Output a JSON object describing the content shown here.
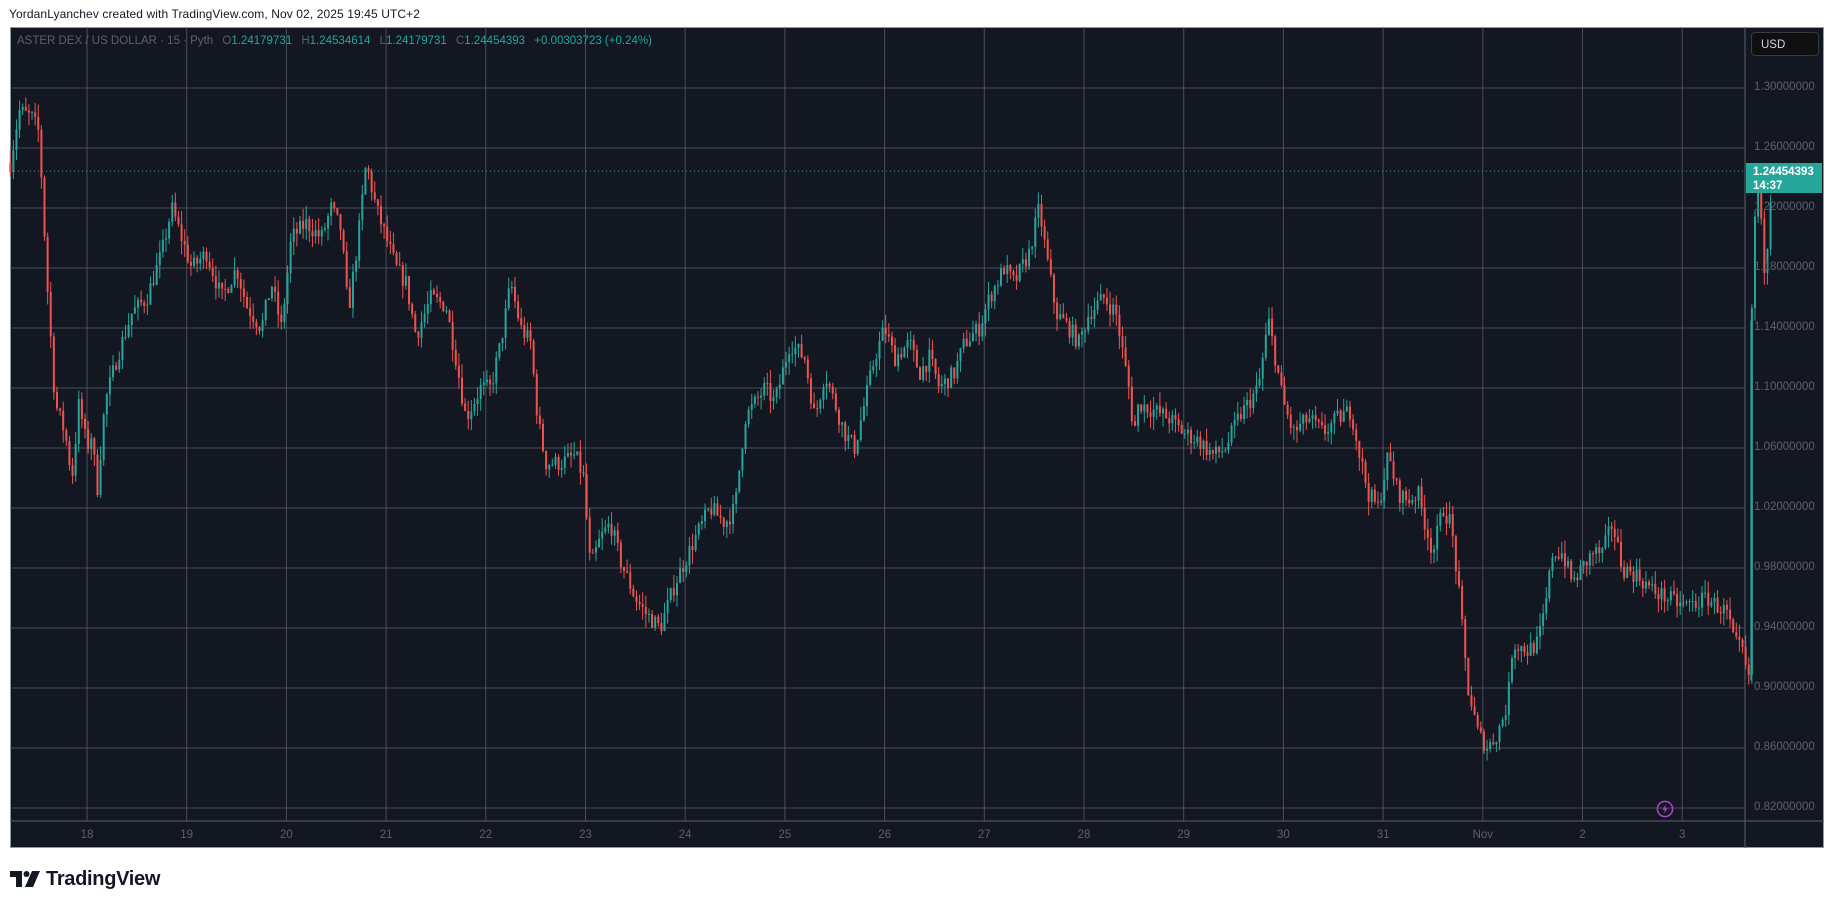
{
  "credit": "YordanLyanchev created with TradingView.com, Nov 02, 2025 19:45 UTC+2",
  "legend": {
    "symbol_prefix": "ASTER DEX / US DOLLAR · 15 · Pyth",
    "open_label": "O",
    "open": "1.24179731",
    "high_label": "H",
    "high": "1.24534614",
    "low_label": "L",
    "low": "1.24179731",
    "close_label": "C",
    "close": "1.24454393",
    "change": "+0.00303723 (+0.24%)"
  },
  "currency_button": "USD",
  "last_price": {
    "value": "1.24454393",
    "countdown": "14:37"
  },
  "brand": {
    "name": "TradingView",
    "logo_icon": "tradingview-logo-icon"
  },
  "colors": {
    "background": "#131722",
    "grid": "#5d606b",
    "up": "#26a69a",
    "down": "#ef5350",
    "axis_text": "#5d606b",
    "last_price_tag": "#26a69a",
    "alert_icon": "#b43fd6"
  },
  "price_axis": {
    "labels": [
      "1.30000000",
      "1.26000000",
      "1.22000000",
      "1.18000000",
      "1.14000000",
      "1.10000000",
      "1.06000000",
      "1.02000000",
      "0.98000000",
      "0.94000000",
      "0.90000000",
      "0.86000000",
      "0.82000000"
    ]
  },
  "time_axis": {
    "labels": [
      "18",
      "19",
      "20",
      "21",
      "22",
      "23",
      "24",
      "25",
      "26",
      "27",
      "28",
      "29",
      "30",
      "31",
      "Nov",
      "2",
      "3"
    ]
  },
  "chart_data": {
    "type": "candlestick",
    "title": "ASTER DEX / US DOLLAR · 15 · Pyth",
    "interval": "15m",
    "xlabel": "",
    "ylabel": "USD",
    "ylim": [
      0.815,
      1.325
    ],
    "grid": true,
    "x_ticks": [
      "18",
      "19",
      "20",
      "21",
      "22",
      "23",
      "24",
      "25",
      "26",
      "27",
      "28",
      "29",
      "30",
      "31",
      "Nov",
      "2",
      "3"
    ],
    "y_ticks": [
      1.3,
      1.26,
      1.22,
      1.18,
      1.14,
      1.1,
      1.06,
      1.02,
      0.98,
      0.94,
      0.9,
      0.86,
      0.82
    ],
    "last_price": 1.24454393,
    "path_note": "approximate closing-price path; x = days since Oct 17 00:00",
    "path": [
      [
        0.23,
        1.25
      ],
      [
        0.32,
        1.285
      ],
      [
        0.45,
        1.28
      ],
      [
        0.52,
        1.27
      ],
      [
        0.6,
        1.17
      ],
      [
        0.68,
        1.09
      ],
      [
        0.78,
        1.07
      ],
      [
        0.85,
        1.04
      ],
      [
        0.92,
        1.09
      ],
      [
        1.0,
        1.06
      ],
      [
        1.05,
        1.07
      ],
      [
        1.1,
        1.03
      ],
      [
        1.18,
        1.09
      ],
      [
        1.3,
        1.12
      ],
      [
        1.45,
        1.15
      ],
      [
        1.6,
        1.16
      ],
      [
        1.75,
        1.19
      ],
      [
        1.85,
        1.22
      ],
      [
        1.95,
        1.2
      ],
      [
        2.05,
        1.18
      ],
      [
        2.2,
        1.19
      ],
      [
        2.35,
        1.16
      ],
      [
        2.5,
        1.18
      ],
      [
        2.6,
        1.155
      ],
      [
        2.75,
        1.14
      ],
      [
        2.85,
        1.17
      ],
      [
        2.95,
        1.14
      ],
      [
        3.05,
        1.2
      ],
      [
        3.2,
        1.21
      ],
      [
        3.35,
        1.2
      ],
      [
        3.45,
        1.22
      ],
      [
        3.55,
        1.205
      ],
      [
        3.62,
        1.15
      ],
      [
        3.72,
        1.2
      ],
      [
        3.8,
        1.25
      ],
      [
        3.9,
        1.22
      ],
      [
        4.0,
        1.2
      ],
      [
        4.1,
        1.18
      ],
      [
        4.2,
        1.17
      ],
      [
        4.3,
        1.135
      ],
      [
        4.45,
        1.16
      ],
      [
        4.6,
        1.155
      ],
      [
        4.7,
        1.12
      ],
      [
        4.8,
        1.08
      ],
      [
        4.95,
        1.1
      ],
      [
        5.05,
        1.1
      ],
      [
        5.15,
        1.13
      ],
      [
        5.25,
        1.17
      ],
      [
        5.35,
        1.14
      ],
      [
        5.45,
        1.13
      ],
      [
        5.52,
        1.08
      ],
      [
        5.6,
        1.05
      ],
      [
        5.75,
        1.05
      ],
      [
        5.9,
        1.055
      ],
      [
        5.98,
        1.04
      ],
      [
        6.05,
        0.98
      ],
      [
        6.15,
        1.0
      ],
      [
        6.25,
        1.01
      ],
      [
        6.35,
        0.985
      ],
      [
        6.5,
        0.96
      ],
      [
        6.6,
        0.95
      ],
      [
        6.75,
        0.94
      ],
      [
        6.9,
        0.97
      ],
      [
        7.1,
        1.0
      ],
      [
        7.25,
        1.02
      ],
      [
        7.4,
        1.01
      ],
      [
        7.5,
        1.02
      ],
      [
        7.6,
        1.08
      ],
      [
        7.7,
        1.09
      ],
      [
        7.8,
        1.1
      ],
      [
        7.9,
        1.09
      ],
      [
        8.05,
        1.13
      ],
      [
        8.2,
        1.12
      ],
      [
        8.3,
        1.08
      ],
      [
        8.4,
        1.11
      ],
      [
        8.5,
        1.09
      ],
      [
        8.6,
        1.07
      ],
      [
        8.7,
        1.06
      ],
      [
        8.8,
        1.09
      ],
      [
        8.9,
        1.12
      ],
      [
        9.0,
        1.14
      ],
      [
        9.1,
        1.12
      ],
      [
        9.25,
        1.13
      ],
      [
        9.35,
        1.11
      ],
      [
        9.45,
        1.12
      ],
      [
        9.55,
        1.1
      ],
      [
        9.7,
        1.11
      ],
      [
        9.8,
        1.13
      ],
      [
        9.95,
        1.14
      ],
      [
        10.05,
        1.16
      ],
      [
        10.2,
        1.18
      ],
      [
        10.3,
        1.17
      ],
      [
        10.45,
        1.19
      ],
      [
        10.55,
        1.22
      ],
      [
        10.62,
        1.19
      ],
      [
        10.72,
        1.15
      ],
      [
        10.85,
        1.14
      ],
      [
        10.95,
        1.13
      ],
      [
        11.05,
        1.15
      ],
      [
        11.2,
        1.16
      ],
      [
        11.32,
        1.15
      ],
      [
        11.45,
        1.1
      ],
      [
        11.5,
        1.07
      ],
      [
        11.55,
        1.09
      ],
      [
        11.7,
        1.085
      ],
      [
        11.85,
        1.08
      ],
      [
        12.0,
        1.07
      ],
      [
        12.15,
        1.065
      ],
      [
        12.3,
        1.055
      ],
      [
        12.42,
        1.06
      ],
      [
        12.55,
        1.08
      ],
      [
        12.65,
        1.09
      ],
      [
        12.75,
        1.1
      ],
      [
        12.85,
        1.145
      ],
      [
        12.92,
        1.12
      ],
      [
        13.0,
        1.09
      ],
      [
        13.1,
        1.07
      ],
      [
        13.25,
        1.08
      ],
      [
        13.4,
        1.07
      ],
      [
        13.55,
        1.08
      ],
      [
        13.68,
        1.085
      ],
      [
        13.75,
        1.06
      ],
      [
        13.85,
        1.03
      ],
      [
        13.95,
        1.02
      ],
      [
        14.05,
        1.055
      ],
      [
        14.15,
        1.03
      ],
      [
        14.25,
        1.025
      ],
      [
        14.35,
        1.03
      ],
      [
        14.42,
        1.01
      ],
      [
        14.5,
        0.99
      ],
      [
        14.6,
        1.02
      ],
      [
        14.68,
        1.01
      ],
      [
        14.75,
        0.97
      ],
      [
        14.85,
        0.9
      ],
      [
        14.95,
        0.87
      ],
      [
        15.05,
        0.86
      ],
      [
        15.15,
        0.87
      ],
      [
        15.25,
        0.89
      ],
      [
        15.3,
        0.93
      ],
      [
        15.45,
        0.925
      ],
      [
        15.55,
        0.93
      ],
      [
        15.62,
        0.95
      ],
      [
        15.7,
        0.99
      ],
      [
        15.8,
        0.99
      ],
      [
        15.9,
        0.97
      ],
      [
        16.0,
        0.98
      ],
      [
        16.1,
        0.99
      ],
      [
        16.2,
        0.99
      ],
      [
        16.3,
        1.01
      ],
      [
        16.4,
        0.98
      ],
      [
        16.55,
        0.975
      ],
      [
        16.7,
        0.965
      ],
      [
        16.85,
        0.96
      ],
      [
        17.0,
        0.955
      ],
      [
        17.15,
        0.957
      ],
      [
        17.25,
        0.96
      ],
      [
        17.35,
        0.955
      ],
      [
        17.45,
        0.95
      ],
      [
        17.52,
        0.93
      ],
      [
        17.6,
        0.925
      ],
      [
        17.68,
        0.9
      ],
      [
        17.7,
        1.17
      ],
      [
        17.75,
        1.24
      ],
      [
        17.78,
        1.22
      ],
      [
        17.82,
        1.18
      ],
      [
        17.86,
        1.2
      ],
      [
        17.9,
        1.245
      ]
    ]
  }
}
